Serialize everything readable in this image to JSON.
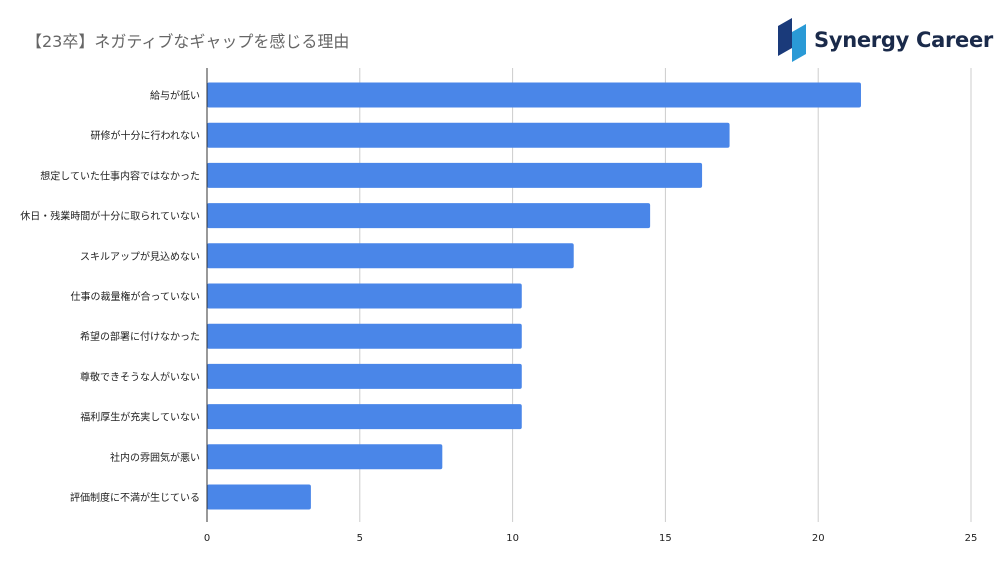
{
  "header": {
    "title": "【23卒】ネガティブなギャップを感じる理由",
    "logo_text": "Synergy Career"
  },
  "colors": {
    "bar": "#4a86e8",
    "grid": "#cccccc",
    "axis": "#333333",
    "text": "#222222",
    "logo_dark": "#1a3a7a",
    "logo_light": "#2a9ad6"
  },
  "chart_data": {
    "type": "bar",
    "orientation": "horizontal",
    "title": "【23卒】ネガティブなギャップを感じる理由",
    "xlabel": "",
    "ylabel": "",
    "categories": [
      "給与が低い",
      "研修が十分に行われない",
      "想定していた仕事内容ではなかった",
      "休日・残業時間が十分に取られていない",
      "スキルアップが見込めない",
      "仕事の裁量権が合っていない",
      "希望の部署に付けなかった",
      "尊敬できそうな人がいない",
      "福利厚生が充実していない",
      "社内の雰囲気が悪い",
      "評価制度に不満が生じている"
    ],
    "values": [
      21.4,
      17.1,
      16.2,
      14.5,
      12.0,
      10.3,
      10.3,
      10.3,
      10.3,
      7.7,
      3.4
    ],
    "xlim": [
      0,
      25
    ],
    "xticks": [
      "0",
      "5",
      "10",
      "15",
      "20",
      "25"
    ],
    "grid": true,
    "legend": "none"
  }
}
